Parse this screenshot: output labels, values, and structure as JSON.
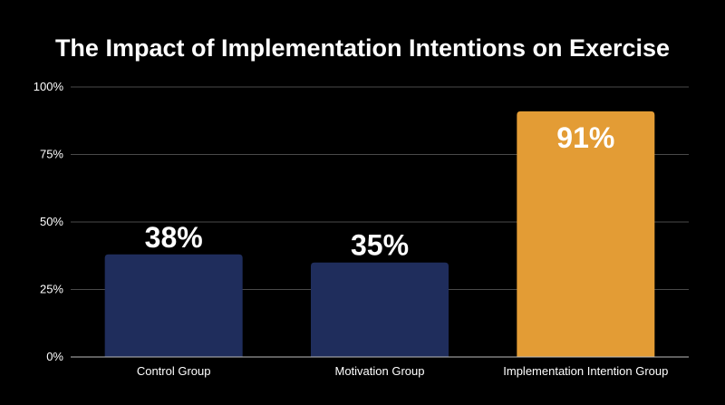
{
  "chart_data": {
    "type": "bar",
    "title": "The Impact of Implementation Intentions on Exercise",
    "categories": [
      "Control Group",
      "Motivation Group",
      "Implementation Intention Group"
    ],
    "values": [
      38,
      35,
      91
    ],
    "data_labels": [
      "38%",
      "35%",
      "91%"
    ],
    "bar_colors": [
      "#1f2d5c",
      "#1f2d5c",
      "#e39c35"
    ],
    "y_ticks": [
      0,
      25,
      50,
      75,
      100
    ],
    "y_tick_labels": [
      "0%",
      "25%",
      "50%",
      "75%",
      "100%"
    ],
    "ylim": [
      0,
      100
    ],
    "grid": true,
    "legend": "none",
    "background": "#000000"
  }
}
